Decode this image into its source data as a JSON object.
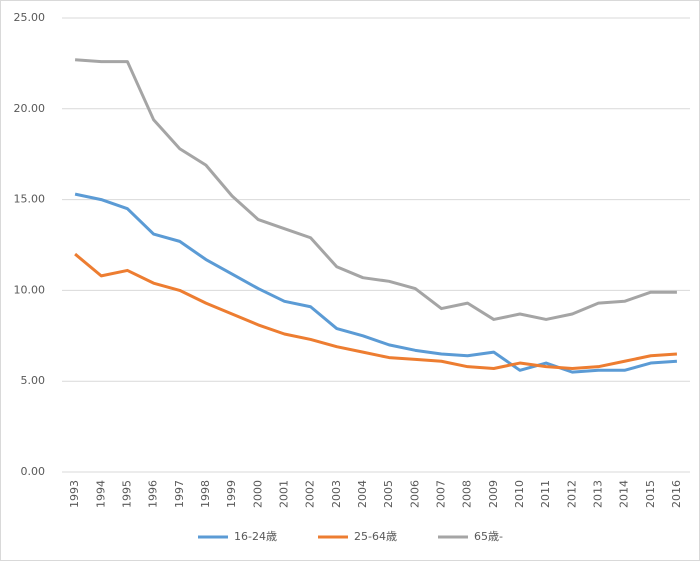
{
  "chart_data": {
    "type": "line",
    "categories": [
      "1993",
      "1994",
      "1995",
      "1996",
      "1997",
      "1998",
      "1999",
      "2000",
      "2001",
      "2002",
      "2003",
      "2004",
      "2005",
      "2006",
      "2007",
      "2008",
      "2009",
      "2010",
      "2011",
      "2012",
      "2013",
      "2014",
      "2015",
      "2016"
    ],
    "series": [
      {
        "name": "16-24歳",
        "color": "#5b9bd5",
        "values": [
          15.3,
          15.0,
          14.5,
          13.1,
          12.7,
          11.7,
          10.9,
          10.1,
          9.4,
          9.1,
          7.9,
          7.5,
          7.0,
          6.7,
          6.5,
          6.4,
          6.6,
          5.6,
          6.0,
          5.5,
          5.6,
          5.6,
          6.0,
          6.1
        ]
      },
      {
        "name": "25-64歳",
        "color": "#ed7d31",
        "values": [
          12.0,
          10.8,
          11.1,
          10.4,
          10.0,
          9.3,
          8.7,
          8.1,
          7.6,
          7.3,
          6.9,
          6.6,
          6.3,
          6.2,
          6.1,
          5.8,
          5.7,
          6.0,
          5.8,
          5.7,
          5.8,
          6.1,
          6.4,
          6.5
        ]
      },
      {
        "name": "65歳-",
        "color": "#a5a5a5",
        "values": [
          22.7,
          22.6,
          22.6,
          19.4,
          17.8,
          16.9,
          15.2,
          13.9,
          13.4,
          12.9,
          11.3,
          10.7,
          10.5,
          10.1,
          9.0,
          9.3,
          8.4,
          8.7,
          8.4,
          8.7,
          9.3,
          9.4,
          9.9,
          9.9
        ]
      }
    ],
    "ylim": [
      0,
      25
    ],
    "yticks": [
      {
        "value": 0,
        "label": "0.00"
      },
      {
        "value": 5,
        "label": "5.00"
      },
      {
        "value": 10,
        "label": "10.00"
      },
      {
        "value": 15,
        "label": "15.00"
      },
      {
        "value": 20,
        "label": "20.00"
      },
      {
        "value": 25,
        "label": "25.00"
      }
    ],
    "grid": true,
    "legend": "bottom"
  }
}
